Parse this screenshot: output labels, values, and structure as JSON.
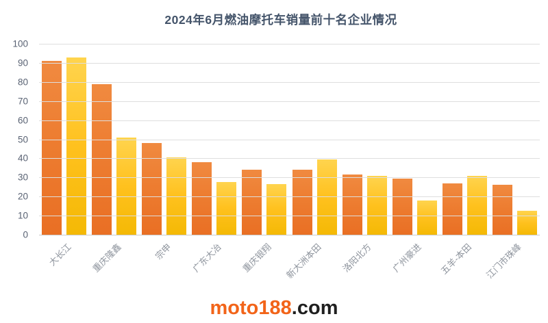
{
  "title": "2024年6月燃油摩托车销量前十名企业情况",
  "watermark": {
    "brand": "moto188",
    "suffix": ".com"
  },
  "colors": {
    "orange_series": "#ED7D31",
    "gold_series": "#FFC11E",
    "title_text": "#44546A",
    "y_axis_text": "#596273",
    "x_axis_text": "#8F959E",
    "gridline": "#DEDEDE",
    "axis_line": "#C9C9C9",
    "watermark_brand": "#F26419",
    "watermark_suffix": "#1F1F1F"
  },
  "chart_data": {
    "type": "bar",
    "title": "2024年6月燃油摩托车销量前十名企业情况",
    "categories": [
      "大长江",
      "重庆隆鑫",
      "宗申",
      "广东大冶",
      "重庆银翔",
      "新大洲本田",
      "洛阳北方",
      "广州豪进",
      "五羊-本田",
      "江门市珠峰"
    ],
    "series": [
      {
        "name": "orange-series",
        "color": "#ED7D31",
        "values": [
          91,
          79,
          48,
          38,
          34,
          34,
          31.5,
          29.5,
          27,
          26
        ]
      },
      {
        "name": "gold-series",
        "color": "#FFC11E",
        "values": [
          93,
          51,
          40.5,
          27.5,
          26.5,
          39.5,
          31,
          18,
          31,
          12.5
        ]
      }
    ],
    "xlabel": "",
    "ylabel": "",
    "ylim": [
      0,
      100
    ],
    "y_ticks": [
      100,
      90,
      80,
      70,
      60,
      50,
      40,
      30,
      20,
      10,
      0
    ],
    "grid": true,
    "legend": false
  }
}
